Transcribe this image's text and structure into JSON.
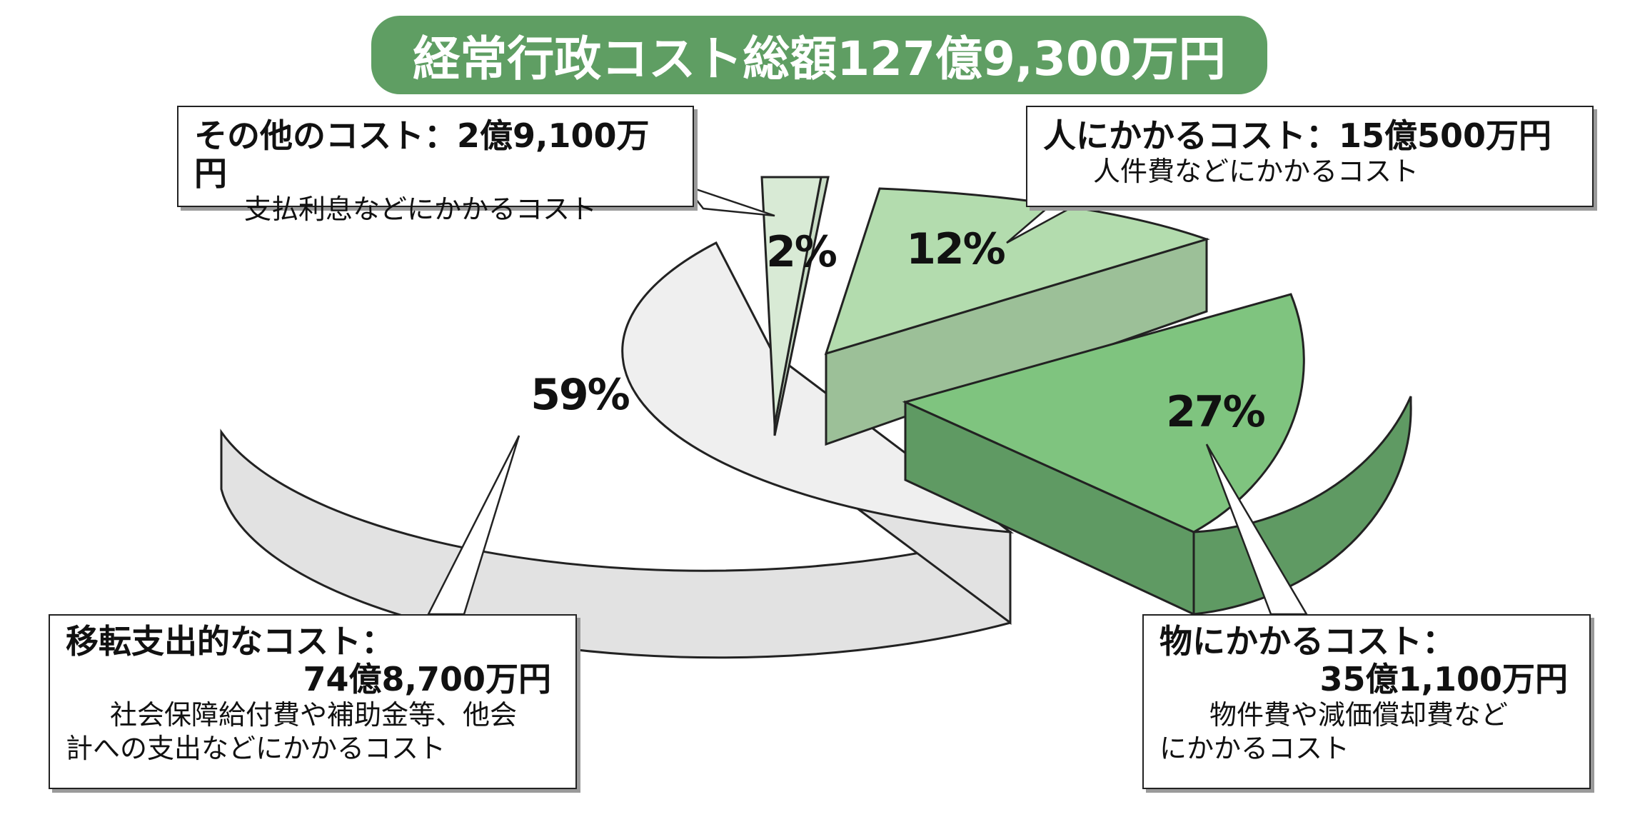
{
  "title": "経常行政コスト総額127億9,300万円",
  "colors": {
    "title_bg": "#5f9e63",
    "transfer_top": "#efefef",
    "transfer_side": "#e2e2e2",
    "other_top": "#d8ead5",
    "other_side": "#c8dcc5",
    "personnel_top": "#b3dcae",
    "personnel_side": "#9cc098",
    "goods_top": "#7fc47f",
    "goods_side": "#5f9a63"
  },
  "callouts": {
    "other": {
      "head": "その他のコスト：2億9,100万円",
      "sub": "支払利息などにかかるコスト"
    },
    "personnel": {
      "head": "人にかかるコスト：15億500万円",
      "sub": "人件費などにかかるコスト"
    },
    "transfer": {
      "head1": "移転支出的なコスト：",
      "head2": "74億8,700万円",
      "sub1": "社会保障給付費や補助金等、他会",
      "sub2": "計への支出などにかかるコスト"
    },
    "goods": {
      "head1": "物にかかるコスト：",
      "head2": "35億1,100万円",
      "sub1": "物件費や減価償却費など",
      "sub2": "にかかるコスト"
    }
  },
  "chart_data": {
    "type": "pie",
    "title": "経常行政コスト総額127億9,300万円",
    "slices": [
      {
        "name": "移転支出的なコスト",
        "amount": "74億8,700万円",
        "percent": 59,
        "label": "59%"
      },
      {
        "name": "その他のコスト",
        "amount": "2億9,100万円",
        "percent": 2,
        "label": "2%"
      },
      {
        "name": "人にかかるコスト",
        "amount": "15億500万円",
        "percent": 12,
        "label": "12%"
      },
      {
        "name": "物にかかるコスト",
        "amount": "35億1,100万円",
        "percent": 27,
        "label": "27%"
      }
    ]
  }
}
